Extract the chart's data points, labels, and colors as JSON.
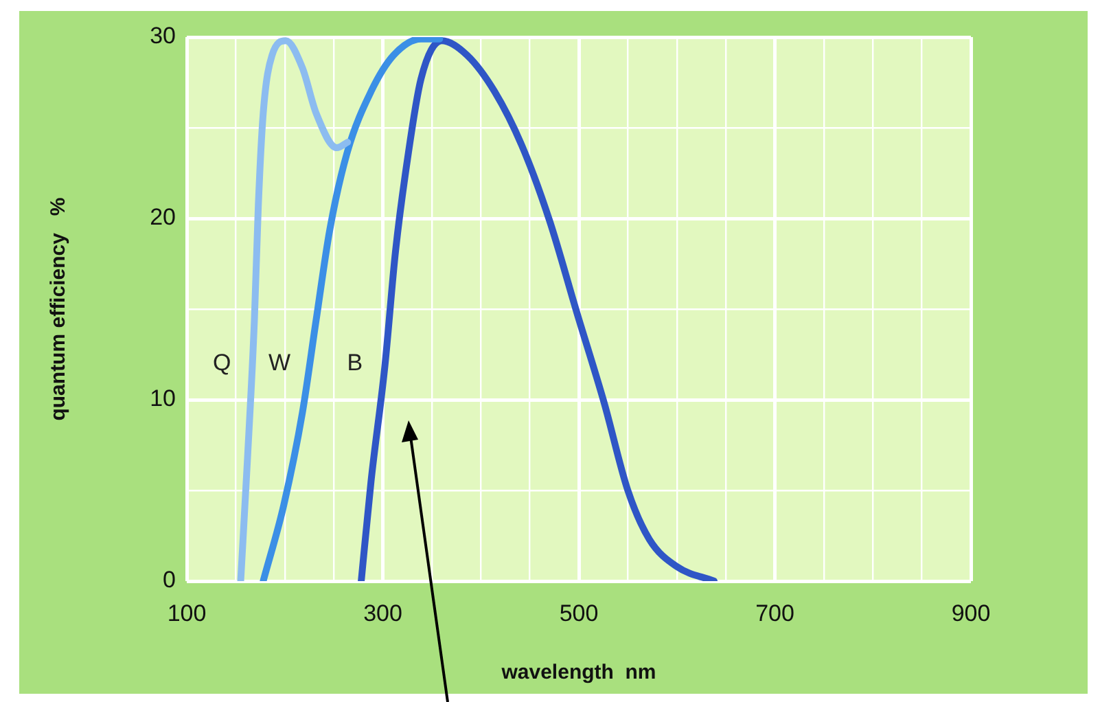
{
  "chart_data": {
    "type": "line",
    "xlabel": "wavelength  nm",
    "ylabel": "quantum efficiency   %",
    "xlim": [
      100,
      900
    ],
    "ylim": [
      0,
      30
    ],
    "xticks": [
      100,
      {
        "value": 150,
        "label": null
      },
      {
        "value": 200,
        "label": null
      },
      {
        "value": 250,
        "label": null
      },
      300,
      {
        "value": 350,
        "label": null
      },
      {
        "value": 400,
        "label": null
      },
      {
        "value": 450,
        "label": null
      },
      500,
      {
        "value": 550,
        "label": null
      },
      {
        "value": 600,
        "label": null
      },
      {
        "value": 650,
        "label": null
      },
      700,
      {
        "value": 750,
        "label": null
      },
      {
        "value": 800,
        "label": null
      },
      {
        "value": 850,
        "label": null
      },
      900
    ],
    "yticks": [
      0,
      {
        "value": 5,
        "label": null
      },
      10,
      {
        "value": 15,
        "label": null
      },
      20,
      {
        "value": 25,
        "label": null
      },
      30
    ],
    "grid": true,
    "legend": false,
    "marker": "none",
    "line_style": "solid",
    "series": [
      {
        "name": "Q",
        "color": "#8cbcf0",
        "x": [
          155,
          162,
          169,
          173,
          178,
          187,
          201,
          218,
          232,
          253,
          264
        ],
        "values": [
          0,
          6.8,
          14.4,
          20.7,
          25.8,
          29,
          29.8,
          28.3,
          25.8,
          23.9,
          24.2
        ]
      },
      {
        "name": "W",
        "color": "#3b8fe6",
        "x": [
          178,
          199,
          218,
          232,
          246,
          264,
          288,
          311,
          339,
          358
        ],
        "values": [
          0,
          4.2,
          9.3,
          14.4,
          19.4,
          23.7,
          27,
          29,
          29.9,
          29.9
        ]
      },
      {
        "name": "B",
        "color": "#2f56c6",
        "x": [
          278,
          288,
          302,
          313,
          325,
          339,
          360,
          386,
          414,
          442,
          470,
          498,
          526,
          550,
          572,
          600,
          638
        ],
        "values": [
          0,
          5.5,
          11.8,
          18.2,
          23.2,
          27.7,
          29.8,
          29,
          27,
          24,
          19.9,
          14.8,
          9.8,
          5,
          2.3,
          0.8,
          0
        ]
      }
    ]
  }
}
